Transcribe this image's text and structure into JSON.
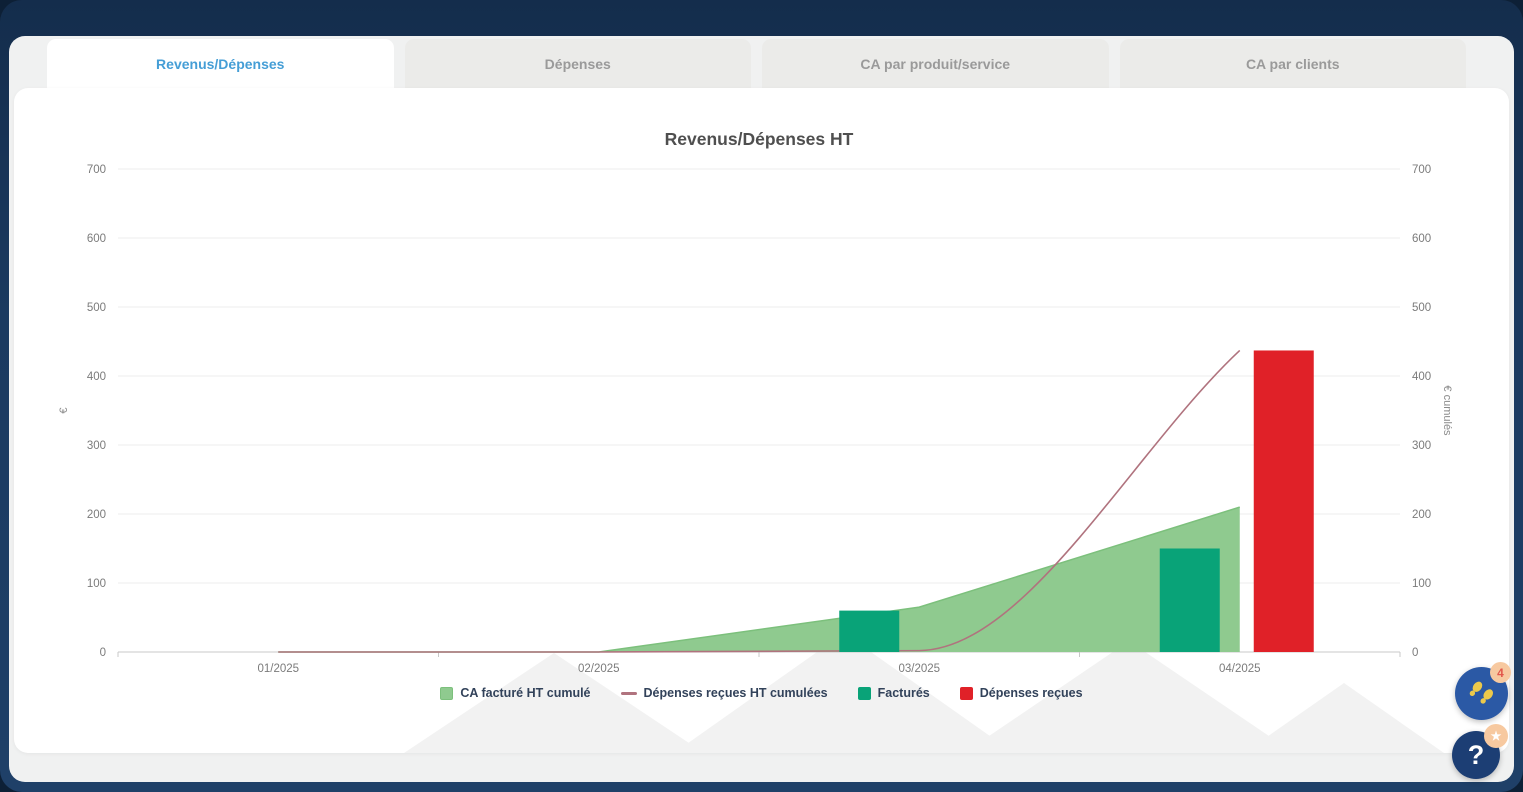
{
  "tabs": [
    {
      "label": "Revenus/Dépenses",
      "active": true
    },
    {
      "label": "Dépenses",
      "active": false
    },
    {
      "label": "CA par produit/service",
      "active": false
    },
    {
      "label": "CA par clients",
      "active": false
    }
  ],
  "chart_data": {
    "type": "mixed",
    "title": "Revenus/Dépenses HT",
    "categories": [
      "01/2025",
      "02/2025",
      "03/2025",
      "04/2025"
    ],
    "series": [
      {
        "name": "CA facturé HT cumulé",
        "type": "area",
        "color": "#8fca8f",
        "edge": "#7cc07c",
        "values": [
          0,
          0,
          65,
          210
        ]
      },
      {
        "name": "Dépenses reçues HT cumulées",
        "type": "line",
        "color": "#b0737e",
        "values": [
          0,
          0,
          2,
          437
        ]
      },
      {
        "name": "Facturés",
        "type": "bar",
        "color": "#09a378",
        "values": [
          0,
          0,
          60,
          150
        ]
      },
      {
        "name": "Dépenses reçues",
        "type": "bar",
        "color": "#e02128",
        "values": [
          0,
          0,
          0,
          437
        ]
      }
    ],
    "y_ticks": [
      0,
      100,
      200,
      300,
      400,
      500,
      600,
      700
    ],
    "ylim": [
      0,
      700
    ],
    "y_left_label": "€",
    "y_right_label": "€ cumulés",
    "grid": true,
    "legend_position": "bottom"
  },
  "floating": {
    "feet_badge": "4",
    "help_label": "?"
  },
  "icons": {
    "star": "★"
  },
  "colors": {
    "frame_navy": "#1b3a60",
    "page_gray": "#f0f1f1",
    "active_tab_text": "#459ed6",
    "inactive_tab_text": "#9a9a9a",
    "title_text": "#4f4f4f",
    "tick_text": "#7b7b7b",
    "legend_text": "#32425a",
    "grid_line": "#ececec",
    "axis_line": "#c8c8c8",
    "fab_blue": "#2b59a5",
    "fab_navy": "#1c3e74",
    "badge_peach": "#f7c9a0"
  }
}
